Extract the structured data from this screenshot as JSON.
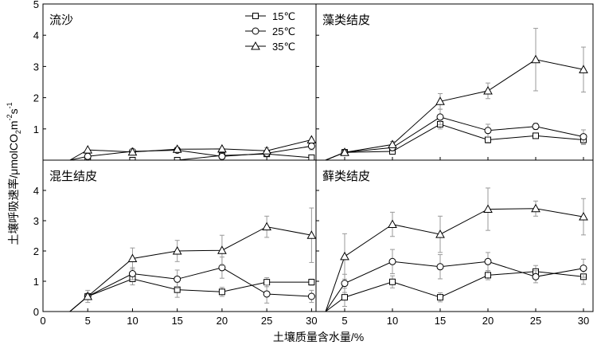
{
  "chart_data": [
    {
      "type": "line",
      "panel": "top-left",
      "title": "流沙",
      "x": [
        3,
        5,
        10,
        15,
        20,
        25,
        30
      ],
      "xlim": [
        0,
        30.5
      ],
      "ylim": [
        0,
        5
      ],
      "xticks": [
        0,
        5,
        10,
        15,
        20,
        25,
        30
      ],
      "yticks": [
        0,
        1,
        2,
        3,
        4,
        5
      ],
      "ytick_labels": [
        "",
        "1",
        "2",
        "3",
        "4",
        "5"
      ],
      "xtick_labels": [],
      "series": [
        {
          "name": "15℃",
          "marker": "square",
          "values": [
            0.0,
            0.0,
            0.0,
            0.0,
            0.15,
            0.2,
            0.08
          ],
          "errors": [
            0,
            0,
            0,
            0,
            0,
            0,
            0
          ]
        },
        {
          "name": "25℃",
          "marker": "circle",
          "values": [
            0.0,
            0.12,
            0.28,
            0.32,
            0.12,
            0.22,
            0.45
          ],
          "errors": [
            0,
            0,
            0.08,
            0.06,
            0,
            0.05,
            0.12
          ]
        },
        {
          "name": "35℃",
          "marker": "triangle",
          "values": [
            0.0,
            0.33,
            0.26,
            0.35,
            0.36,
            0.3,
            0.65
          ],
          "errors": [
            0,
            0,
            0.1,
            0.07,
            0,
            0.1,
            0
          ]
        }
      ]
    },
    {
      "type": "line",
      "panel": "top-right",
      "title": "藻类结皮",
      "x": [
        3,
        5,
        10,
        15,
        20,
        25,
        30
      ],
      "xlim": [
        2,
        31
      ],
      "ylim": [
        0,
        5
      ],
      "xticks": [
        5,
        10,
        15,
        20,
        25,
        30
      ],
      "yticks": [
        0,
        1,
        2,
        3,
        4,
        5
      ],
      "xtick_labels": [],
      "series": [
        {
          "name": "15℃",
          "marker": "square",
          "values": [
            0.0,
            0.25,
            0.28,
            1.15,
            0.65,
            0.78,
            0.65
          ],
          "errors": [
            0,
            0,
            0,
            0.15,
            0.1,
            0.08,
            0.15
          ]
        },
        {
          "name": "25℃",
          "marker": "circle",
          "values": [
            0.0,
            0.25,
            0.4,
            1.38,
            0.95,
            1.08,
            0.75
          ],
          "errors": [
            0,
            0,
            0.1,
            0.25,
            0.2,
            0.1,
            0.22
          ]
        },
        {
          "name": "35℃",
          "marker": "triangle",
          "values": [
            0.0,
            0.25,
            0.5,
            1.88,
            2.22,
            3.22,
            2.9
          ],
          "errors": [
            0,
            0,
            0.1,
            0.25,
            0.25,
            1.0,
            0.72
          ]
        }
      ]
    },
    {
      "type": "line",
      "panel": "bottom-left",
      "title": "混生结皮",
      "x": [
        3,
        5,
        10,
        15,
        20,
        25,
        30
      ],
      "xlim": [
        0,
        30.5
      ],
      "ylim": [
        0,
        5
      ],
      "xticks": [
        0,
        5,
        10,
        15,
        20,
        25,
        30
      ],
      "yticks": [
        0,
        1,
        2,
        3,
        4,
        5
      ],
      "ytick_labels": [
        "0",
        "1",
        "2",
        "3",
        "4",
        ""
      ],
      "xtick_labels": [
        "0",
        "5",
        "10",
        "15",
        "20",
        "25",
        "30"
      ],
      "series": [
        {
          "name": "15℃",
          "marker": "square",
          "values": [
            0.0,
            0.5,
            1.08,
            0.72,
            0.65,
            0.97,
            0.97
          ],
          "errors": [
            0,
            0.1,
            0.2,
            0.25,
            0.15,
            0.15,
            0.1
          ]
        },
        {
          "name": "25℃",
          "marker": "circle",
          "values": [
            0.0,
            0.5,
            1.25,
            1.07,
            1.45,
            0.58,
            0.5
          ],
          "errors": [
            0,
            0.1,
            0.2,
            0.3,
            0.35,
            0.3,
            0.2
          ]
        },
        {
          "name": "35℃",
          "marker": "triangle",
          "values": [
            0.0,
            0.5,
            1.75,
            2.0,
            2.02,
            2.8,
            2.52
          ],
          "errors": [
            0,
            0.2,
            0.35,
            0.35,
            0.5,
            0.35,
            0.9
          ]
        }
      ]
    },
    {
      "type": "line",
      "panel": "bottom-right",
      "title": "藓类结皮",
      "x": [
        3,
        5,
        10,
        15,
        20,
        25,
        30
      ],
      "xlim": [
        2,
        31
      ],
      "ylim": [
        0,
        5
      ],
      "xticks": [
        5,
        10,
        15,
        20,
        25,
        30
      ],
      "yticks": [
        0,
        1,
        2,
        3,
        4,
        5
      ],
      "xtick_labels": [
        "5",
        "10",
        "15",
        "20",
        "25",
        "30"
      ],
      "series": [
        {
          "name": "15℃",
          "marker": "square",
          "values": [
            0.0,
            0.47,
            0.98,
            0.47,
            1.2,
            1.32,
            1.15
          ],
          "errors": [
            0,
            0.3,
            0.2,
            0.15,
            0.15,
            0.2,
            0.25
          ]
        },
        {
          "name": "25℃",
          "marker": "circle",
          "values": [
            0.0,
            0.93,
            1.65,
            1.48,
            1.65,
            1.15,
            1.43
          ],
          "errors": [
            0,
            0.3,
            0.4,
            0.4,
            0.3,
            0.2,
            0.3
          ]
        },
        {
          "name": "35℃",
          "marker": "triangle",
          "values": [
            0.0,
            1.82,
            2.88,
            2.55,
            3.38,
            3.4,
            3.13
          ],
          "errors": [
            0,
            0.75,
            0.4,
            0.6,
            0.7,
            0.25,
            0.6
          ]
        }
      ]
    }
  ],
  "axes": {
    "xlabel": "土壤质量含水量/%",
    "ylabel_main": "土壤呼吸速率/μmolCO",
    "ylabel_sub": "2",
    "ylabel_unit": "m",
    "ylabel_unit_exp": "-2",
    "ylabel_s": "s",
    "ylabel_s_exp": "-1"
  },
  "legend": {
    "placement": "top-left panel, upper right",
    "entries": [
      {
        "label": "15℃",
        "marker": "square"
      },
      {
        "label": "25℃",
        "marker": "circle"
      },
      {
        "label": "35℃",
        "marker": "triangle"
      }
    ]
  },
  "colors": {
    "line": "#000000",
    "error_bar": "#9a9a9a",
    "marker_fill": "#ffffff"
  }
}
